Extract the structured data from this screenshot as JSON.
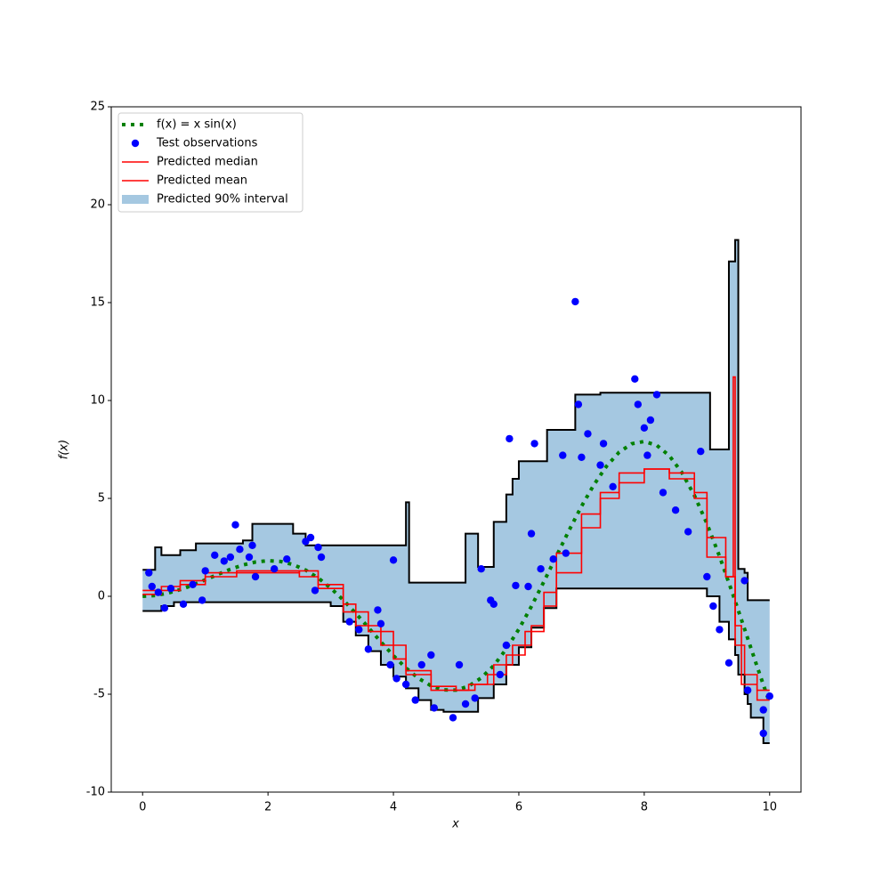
{
  "chart_data": {
    "type": "line",
    "xlabel": "x",
    "ylabel": "f(x)",
    "xlim": [
      -0.5,
      10.5
    ],
    "ylim": [
      -10,
      25
    ],
    "xticks": [
      0,
      2,
      4,
      6,
      8,
      10
    ],
    "yticks": [
      -10,
      -5,
      0,
      5,
      10,
      15,
      20,
      25
    ],
    "legend": "upper left",
    "series": [
      {
        "name": "f(x) = x sin(x)",
        "kind": "line",
        "style": "dotted",
        "color": "#008000",
        "x": [
          0,
          0.2,
          0.4,
          0.6,
          0.8,
          1.0,
          1.2,
          1.4,
          1.6,
          1.8,
          2.0,
          2.2,
          2.4,
          2.6,
          2.8,
          3.0,
          3.2,
          3.4,
          3.6,
          3.8,
          4.0,
          4.2,
          4.4,
          4.6,
          4.8,
          5.0,
          5.2,
          5.4,
          5.6,
          5.8,
          6.0,
          6.2,
          6.4,
          6.6,
          6.8,
          7.0,
          7.2,
          7.4,
          7.6,
          7.8,
          8.0,
          8.2,
          8.4,
          8.6,
          8.8,
          9.0,
          9.2,
          9.4,
          9.6,
          9.8,
          10
        ],
        "values": [
          0,
          0.04,
          0.16,
          0.34,
          0.57,
          0.84,
          1.12,
          1.38,
          1.6,
          1.75,
          1.82,
          1.78,
          1.62,
          1.34,
          0.94,
          0.42,
          -0.19,
          -0.87,
          -1.59,
          -2.33,
          -3.03,
          -3.66,
          -4.19,
          -4.57,
          -4.78,
          -4.79,
          -4.59,
          -4.17,
          -3.54,
          -2.69,
          -1.68,
          -0.52,
          0.75,
          2.06,
          3.36,
          4.6,
          5.71,
          6.65,
          7.36,
          7.79,
          7.91,
          7.71,
          7.18,
          6.32,
          5.15,
          3.71,
          2.05,
          0.23,
          -1.67,
          -3.59,
          -5.44
        ]
      },
      {
        "name": "Test observations",
        "kind": "scatter",
        "color": "#0000ff",
        "x": [
          0.1,
          0.15,
          0.25,
          0.35,
          0.45,
          0.65,
          0.8,
          0.95,
          1.0,
          1.15,
          1.3,
          1.4,
          1.48,
          1.55,
          1.7,
          1.8,
          1.75,
          2.1,
          2.3,
          2.6,
          2.68,
          2.8,
          2.85,
          2.75,
          3.3,
          3.45,
          3.6,
          3.75,
          3.8,
          3.95,
          4.0,
          4.05,
          4.2,
          4.35,
          4.45,
          4.6,
          4.65,
          4.95,
          5.05,
          5.15,
          5.3,
          5.4,
          5.55,
          5.6,
          5.7,
          5.8,
          5.85,
          5.95,
          6.15,
          6.2,
          6.25,
          6.35,
          6.55,
          6.7,
          6.75,
          6.9,
          6.95,
          7.0,
          7.1,
          7.3,
          7.35,
          7.5,
          7.85,
          7.9,
          8.0,
          8.1,
          8.2,
          8.05,
          8.3,
          8.5,
          8.7,
          8.9,
          9.0,
          9.1,
          9.2,
          9.35,
          9.6,
          9.65,
          9.9,
          9.9,
          10.0
        ],
        "values": [
          1.2,
          0.5,
          0.2,
          -0.6,
          0.4,
          -0.4,
          0.6,
          -0.2,
          1.3,
          2.1,
          1.8,
          2.0,
          3.65,
          2.4,
          2.0,
          1.0,
          2.6,
          1.4,
          1.9,
          2.8,
          3.0,
          2.5,
          2.0,
          0.3,
          -1.3,
          -1.7,
          -2.7,
          -0.7,
          -1.4,
          -3.5,
          1.85,
          -4.2,
          -4.5,
          -5.3,
          -3.5,
          -3.0,
          -5.7,
          -6.2,
          -3.5,
          -5.5,
          -5.2,
          1.4,
          -0.2,
          -0.4,
          -4.0,
          -2.5,
          8.05,
          0.55,
          0.5,
          3.2,
          7.8,
          1.4,
          1.9,
          7.2,
          2.2,
          15.05,
          9.8,
          7.1,
          8.3,
          6.7,
          7.8,
          5.6,
          11.1,
          9.8,
          8.6,
          9.0,
          10.3,
          7.2,
          5.3,
          4.4,
          3.3,
          7.4,
          1.0,
          -0.5,
          -1.7,
          -3.4,
          0.8,
          -4.8,
          -5.8,
          -7.0,
          -5.1
        ]
      },
      {
        "name": "Predicted median",
        "kind": "line",
        "step": "post",
        "color": "#ff0000",
        "x": [
          0,
          0.3,
          0.6,
          1,
          1.5,
          2.5,
          2.8,
          3.2,
          3.4,
          3.8,
          4.2,
          4.6,
          5.0,
          5.3,
          5.6,
          5.9,
          6.2,
          6.4,
          6.6,
          7.0,
          7.3,
          7.6,
          8.0,
          8.4,
          8.8,
          9.0,
          9.3,
          9.42,
          9.45,
          9.55,
          9.8,
          10
        ],
        "values": [
          0.3,
          0.5,
          0.8,
          1.2,
          1.3,
          1.0,
          0.4,
          -0.4,
          -1.5,
          -2.5,
          -3.8,
          -4.6,
          -4.8,
          -4.5,
          -3.5,
          -2.5,
          -1.5,
          0.2,
          2.2,
          4.2,
          5.3,
          6.3,
          6.5,
          6.0,
          5.3,
          2.0,
          1.0,
          11.2,
          -1.5,
          -4.5,
          -5.3,
          -5.3
        ]
      },
      {
        "name": "Predicted mean",
        "kind": "line",
        "step": "post",
        "color": "#ff0000",
        "x": [
          0,
          0.3,
          0.6,
          1,
          1.5,
          2.5,
          2.8,
          3.2,
          3.6,
          4.0,
          4.2,
          4.6,
          5.2,
          5.5,
          5.8,
          6.1,
          6.4,
          6.6,
          7.0,
          7.3,
          7.6,
          8.0,
          8.4,
          8.8,
          9.0,
          9.3,
          9.45,
          9.6,
          9.8,
          10
        ],
        "values": [
          0.1,
          0.3,
          0.6,
          1.0,
          1.2,
          1.3,
          0.6,
          -0.8,
          -1.8,
          -3.2,
          -4.0,
          -4.8,
          -4.5,
          -4.0,
          -3.0,
          -1.8,
          -0.5,
          1.2,
          3.5,
          5.0,
          5.8,
          6.5,
          6.3,
          5.0,
          3.0,
          1.0,
          -2.5,
          -4.0,
          -4.8,
          -4.8
        ]
      },
      {
        "name": "Predicted 90% interval",
        "kind": "band",
        "step": "post",
        "color": "#a5c8e1",
        "edgecolor": "#000000",
        "x": [
          0,
          0.2,
          0.3,
          0.5,
          0.6,
          0.85,
          1.6,
          1.75,
          2.4,
          2.6,
          3.0,
          3.2,
          3.4,
          3.6,
          3.8,
          4.0,
          4.2,
          4.25,
          4.4,
          4.6,
          4.8,
          5.15,
          5.35,
          5.4,
          5.6,
          5.8,
          5.9,
          6.0,
          6.2,
          6.4,
          6.45,
          6.6,
          6.9,
          7.3,
          9.0,
          9.05,
          9.2,
          9.35,
          9.45,
          9.5,
          9.6,
          9.65,
          9.7,
          9.9,
          10
        ],
        "upper": [
          1.35,
          2.5,
          2.1,
          2.1,
          2.35,
          2.7,
          2.85,
          3.7,
          3.2,
          2.6,
          2.6,
          2.6,
          2.6,
          2.6,
          2.6,
          2.6,
          4.8,
          0.7,
          0.7,
          0.7,
          0.7,
          3.2,
          1.5,
          1.5,
          3.8,
          5.2,
          6.0,
          6.9,
          6.9,
          6.9,
          8.5,
          8.5,
          10.3,
          10.4,
          10.4,
          7.5,
          7.5,
          17.1,
          18.2,
          1.4,
          1.2,
          -0.2,
          -0.2,
          -0.2,
          -0.2
        ],
        "lower": [
          -0.75,
          -0.75,
          -0.5,
          -0.3,
          -0.3,
          -0.3,
          -0.3,
          -0.3,
          -0.3,
          -0.3,
          -0.5,
          -1.3,
          -2,
          -2.8,
          -3.5,
          -4.1,
          -4.7,
          -4.7,
          -5.3,
          -5.8,
          -5.9,
          -5.9,
          -5.2,
          -5.2,
          -4.5,
          -3.5,
          -3.5,
          -2.6,
          -1.6,
          -0.6,
          -0.6,
          0.4,
          0.4,
          0.4,
          0,
          0,
          -1.3,
          -2.2,
          -3,
          -4,
          -5,
          -5.5,
          -6.2,
          -7.5,
          -7.5
        ]
      }
    ]
  }
}
